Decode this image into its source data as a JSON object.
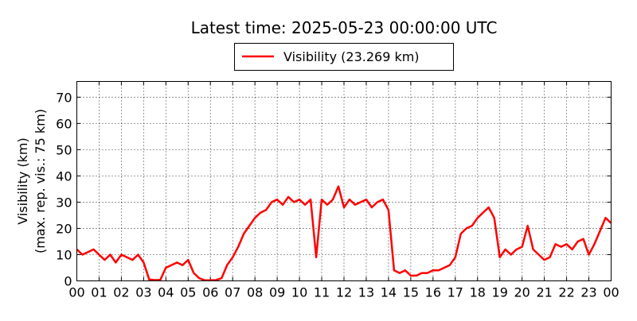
{
  "chart_data": {
    "type": "line",
    "title": "Latest time: 2025-05-23 00:00:00 UTC",
    "ylabel": [
      "Visibility (km)",
      "(max. rep. vis.: 75 km)"
    ],
    "x": [
      0,
      0.25,
      0.5,
      0.75,
      1,
      1.25,
      1.5,
      1.75,
      2,
      2.25,
      2.5,
      2.75,
      3,
      3.25,
      3.5,
      3.75,
      4,
      4.25,
      4.5,
      4.75,
      5,
      5.25,
      5.5,
      5.75,
      6,
      6.25,
      6.5,
      6.75,
      7,
      7.25,
      7.5,
      7.75,
      8,
      8.25,
      8.5,
      8.75,
      9,
      9.25,
      9.5,
      9.75,
      10,
      10.25,
      10.5,
      10.75,
      11,
      11.25,
      11.5,
      11.75,
      12,
      12.25,
      12.5,
      12.75,
      13,
      13.25,
      13.5,
      13.75,
      14,
      14.25,
      14.5,
      14.75,
      15,
      15.25,
      15.5,
      15.75,
      16,
      16.25,
      16.5,
      16.75,
      17,
      17.25,
      17.5,
      17.75,
      18,
      18.25,
      18.5,
      18.75,
      19,
      19.25,
      19.5,
      19.75,
      20,
      20.25,
      20.5,
      20.75,
      21,
      21.25,
      21.5,
      21.75,
      22,
      22.25,
      22.5,
      22.75,
      23,
      23.25,
      23.5,
      23.75,
      24
    ],
    "series": [
      {
        "name": "Visibility (23.269 km)",
        "color": "#ff0000",
        "values": [
          12,
          10,
          11,
          12,
          10,
          8,
          10,
          7,
          10,
          9,
          8,
          10,
          7,
          0.5,
          0.3,
          0.4,
          5,
          6,
          7,
          6,
          8,
          3,
          1,
          0.2,
          0.2,
          0.3,
          1,
          6,
          9,
          13,
          18,
          21,
          24,
          26,
          27,
          30,
          31,
          29,
          32,
          30,
          31,
          29,
          31,
          9,
          31,
          29,
          31,
          36,
          28,
          31,
          29,
          30,
          31,
          28,
          30,
          31,
          27,
          4,
          3,
          4,
          2,
          2,
          3,
          3,
          4,
          4,
          5,
          6,
          9,
          18,
          20,
          21,
          24,
          26,
          28,
          24,
          9,
          12,
          10,
          12,
          13,
          21,
          12,
          10,
          8,
          9,
          14,
          13,
          14,
          12,
          15,
          16,
          10,
          14,
          19,
          24,
          22
        ]
      }
    ],
    "xlim": [
      0,
      24
    ],
    "ylim": [
      0,
      76
    ],
    "xticks": [
      {
        "value": 0,
        "label": "00"
      },
      {
        "value": 1,
        "label": "01"
      },
      {
        "value": 2,
        "label": "02"
      },
      {
        "value": 3,
        "label": "03"
      },
      {
        "value": 4,
        "label": "04"
      },
      {
        "value": 5,
        "label": "05"
      },
      {
        "value": 6,
        "label": "06"
      },
      {
        "value": 7,
        "label": "07"
      },
      {
        "value": 8,
        "label": "08"
      },
      {
        "value": 9,
        "label": "09"
      },
      {
        "value": 10,
        "label": "10"
      },
      {
        "value": 11,
        "label": "11"
      },
      {
        "value": 12,
        "label": "12"
      },
      {
        "value": 13,
        "label": "13"
      },
      {
        "value": 14,
        "label": "14"
      },
      {
        "value": 15,
        "label": "15"
      },
      {
        "value": 16,
        "label": "16"
      },
      {
        "value": 17,
        "label": "17"
      },
      {
        "value": 18,
        "label": "18"
      },
      {
        "value": 19,
        "label": "19"
      },
      {
        "value": 20,
        "label": "20"
      },
      {
        "value": 21,
        "label": "21"
      },
      {
        "value": 22,
        "label": "22"
      },
      {
        "value": 23,
        "label": "23"
      },
      {
        "value": 24,
        "label": "00"
      }
    ],
    "yticks": [
      0,
      10,
      20,
      30,
      40,
      50,
      60,
      70
    ],
    "grid": true
  }
}
